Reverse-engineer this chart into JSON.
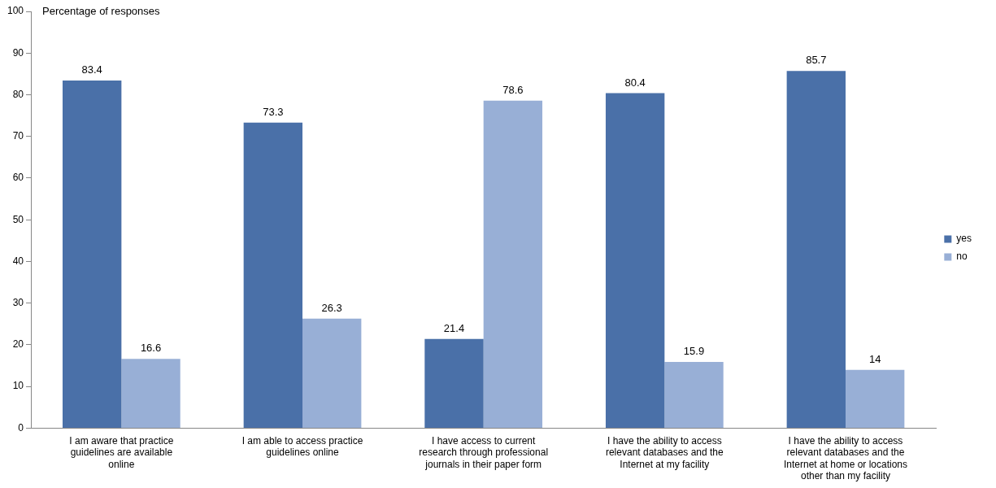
{
  "chart_data": {
    "type": "bar",
    "ylabel": "Percentage of responses",
    "categories": [
      "I am aware that practice guidelines are available online",
      "I am able to access practice guidelines online",
      "I have access to current research through professional journals in their paper form",
      "I have the ability to access relevant databases and the Internet at my facility",
      "I have the ability to access relevant databases and the Internet at home or locations other than my facility"
    ],
    "series": [
      {
        "name": "yes",
        "color": "#4a70a8",
        "values": [
          83.4,
          73.3,
          21.4,
          80.4,
          85.7
        ]
      },
      {
        "name": "no",
        "color": "#98afd6",
        "values": [
          16.6,
          26.3,
          78.6,
          15.9,
          14
        ]
      }
    ],
    "ylim": [
      0,
      100
    ],
    "yticks": [
      0,
      10,
      20,
      30,
      40,
      50,
      60,
      70,
      80,
      90,
      100
    ],
    "grid": false,
    "legend": "right",
    "data_labels": true
  }
}
